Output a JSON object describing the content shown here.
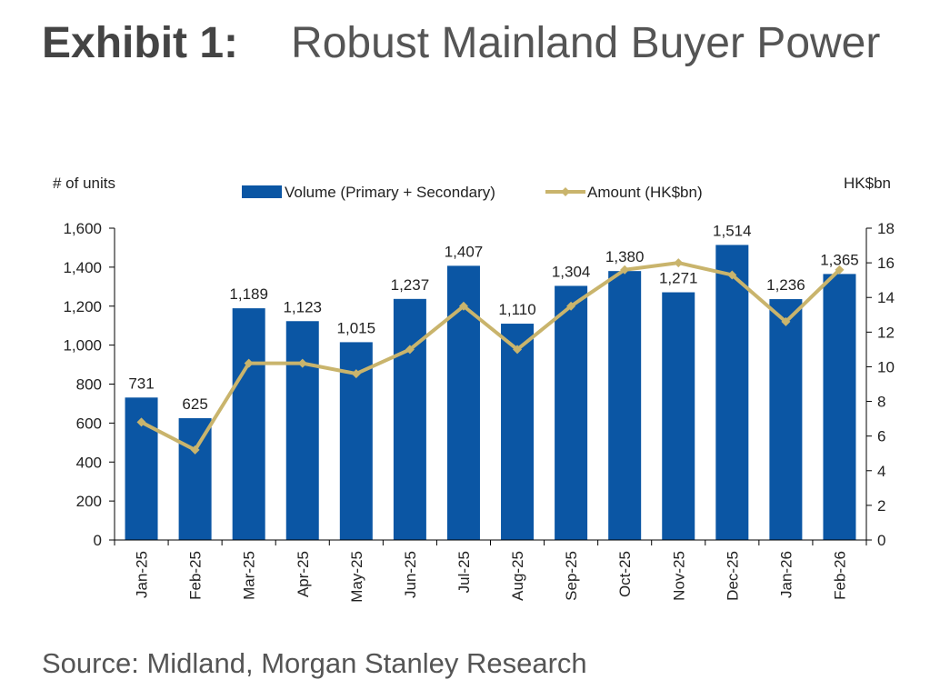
{
  "header": {
    "exhibit_label": "Exhibit 1:",
    "title": "Robust Mainland Buyer Power"
  },
  "footer": {
    "source": "Source: Midland, Morgan Stanley Research"
  },
  "chart_data": {
    "type": "bar",
    "categories": [
      "Jan-25",
      "Feb-25",
      "Mar-25",
      "Apr-25",
      "May-25",
      "Jun-25",
      "Jul-25",
      "Aug-25",
      "Sep-25",
      "Oct-25",
      "Nov-25",
      "Dec-25",
      "Jan-26",
      "Feb-26"
    ],
    "left_axis_label": "# of units",
    "right_axis_label": "HK$bn",
    "ylim": [
      0,
      1600
    ],
    "y_ticks": [
      "0",
      "200",
      "400",
      "600",
      "800",
      "1,000",
      "1,200",
      "1,400",
      "1,600"
    ],
    "y2lim": [
      0,
      18
    ],
    "y2_ticks": [
      "0",
      "2",
      "4",
      "6",
      "8",
      "10",
      "12",
      "14",
      "16",
      "18"
    ],
    "legend_position": "top",
    "colors": {
      "bar": "#0B56A4",
      "line": "#C9B46C"
    },
    "series": [
      {
        "name": "Volume (Primary + Secondary)",
        "type": "bar",
        "axis": "left",
        "values": [
          731,
          625,
          1189,
          1123,
          1015,
          1237,
          1407,
          1110,
          1304,
          1380,
          1271,
          1514,
          1236,
          1365
        ],
        "labels": [
          "731",
          "625",
          "1,189",
          "1,123",
          "1,015",
          "1,237",
          "1,407",
          "1,110",
          "1,304",
          "1,380",
          "1,271",
          "1,514",
          "1,236",
          "1,365"
        ]
      },
      {
        "name": "Amount (HK$bn)",
        "type": "line",
        "axis": "right",
        "values": [
          6.8,
          5.2,
          10.2,
          10.2,
          9.6,
          11.0,
          13.5,
          11.0,
          13.5,
          15.6,
          16.0,
          15.3,
          12.6,
          15.6
        ]
      }
    ]
  }
}
